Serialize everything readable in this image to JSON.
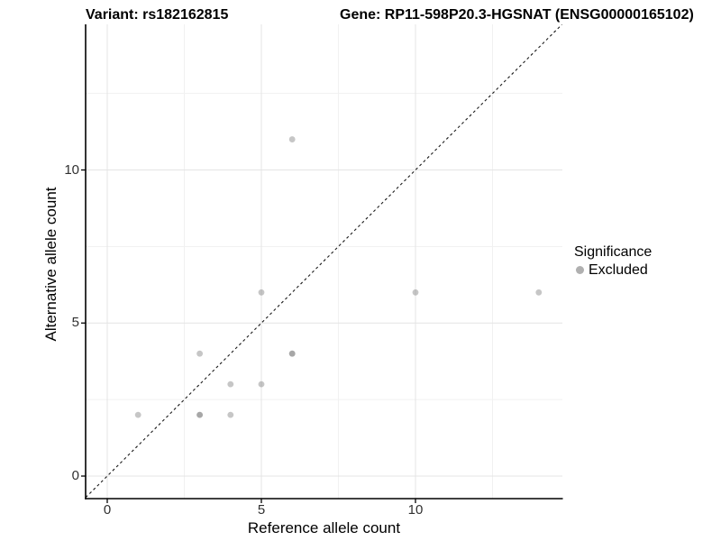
{
  "header": {
    "variant_title": "Variant: rs182162815",
    "gene_title": "Gene: RP11-598P20.3-HGSNAT (ENSG00000165102)"
  },
  "chart_data": {
    "type": "scatter",
    "xlabel": "Reference allele count",
    "ylabel": "Alternative allele count",
    "xlim": [
      -0.7,
      14.77
    ],
    "ylim": [
      -0.74,
      14.75
    ],
    "x_major_ticks": [
      0,
      5,
      10
    ],
    "y_major_ticks": [
      0,
      5,
      10
    ],
    "x_minor_ticks": [
      2.5,
      7.5,
      12.5
    ],
    "y_minor_ticks": [
      2.5,
      7.5,
      12.5
    ],
    "grid": true,
    "identity_line": {
      "style": "dashed",
      "equation": "y = x",
      "color": "#1a1a1a"
    },
    "series": [
      {
        "name": "Excluded",
        "color": "#808080",
        "opacity": 0.45,
        "point_radius": 3.4,
        "points_xy_count": [
          [
            1,
            2,
            1
          ],
          [
            3,
            2,
            2
          ],
          [
            3,
            4,
            1
          ],
          [
            4,
            2,
            1
          ],
          [
            4,
            3,
            1
          ],
          [
            5,
            3,
            1
          ],
          [
            5,
            6,
            1
          ],
          [
            6,
            4,
            2
          ],
          [
            6,
            11,
            1
          ],
          [
            10,
            6,
            1
          ],
          [
            14,
            6,
            1
          ]
        ]
      }
    ],
    "legend": {
      "position": "right",
      "title": "Significance",
      "items": [
        {
          "label": "Excluded",
          "color": "#808080"
        }
      ]
    },
    "colors": {
      "major_grid": "#e4e4e4",
      "minor_grid": "#f1f1f1",
      "axis_line": "#000000",
      "tick_mark": "#000000"
    }
  }
}
